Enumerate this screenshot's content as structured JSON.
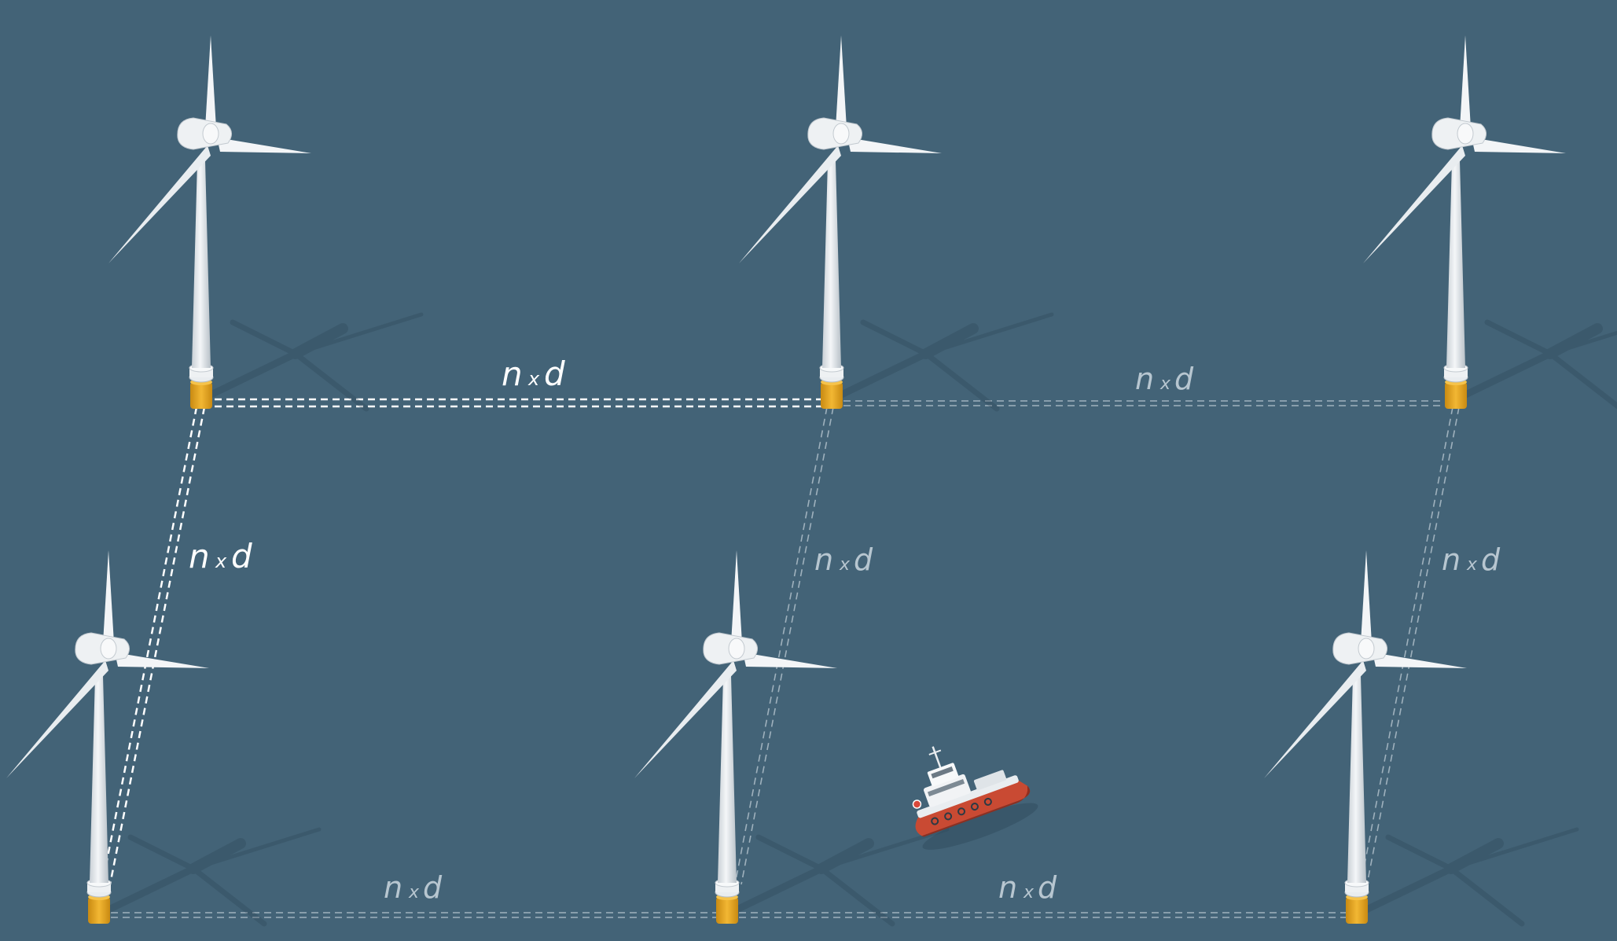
{
  "scene": {
    "background": "#436377",
    "turbine_color": "#eceff1",
    "foundation_color": "#e8a92a",
    "cable_bright": "#ffffff",
    "cable_dim": "#b7c6d0",
    "boat_hull_color": "#c94a33"
  },
  "spacing_label": {
    "n": "n",
    "times": "x",
    "d": "d"
  },
  "turbines": [
    {
      "id": "top-left",
      "row": "top"
    },
    {
      "id": "top-middle",
      "row": "top"
    },
    {
      "id": "top-right",
      "row": "top"
    },
    {
      "id": "bottom-left",
      "row": "bottom"
    },
    {
      "id": "bottom-middle",
      "row": "bottom"
    },
    {
      "id": "bottom-right",
      "row": "bottom"
    }
  ],
  "connections": [
    {
      "id": "top-left-to-top-middle",
      "emphasis": "highlighted"
    },
    {
      "id": "top-middle-to-top-right",
      "emphasis": "muted"
    },
    {
      "id": "top-left-to-bottom-left",
      "emphasis": "highlighted"
    },
    {
      "id": "top-middle-to-bottom-middle",
      "emphasis": "muted"
    },
    {
      "id": "top-right-to-bottom-right",
      "emphasis": "muted"
    },
    {
      "id": "bottom-left-to-bottom-middle",
      "emphasis": "muted"
    },
    {
      "id": "bottom-middle-to-bottom-right",
      "emphasis": "muted"
    }
  ],
  "boat": {
    "icon": "service-boat-icon"
  }
}
